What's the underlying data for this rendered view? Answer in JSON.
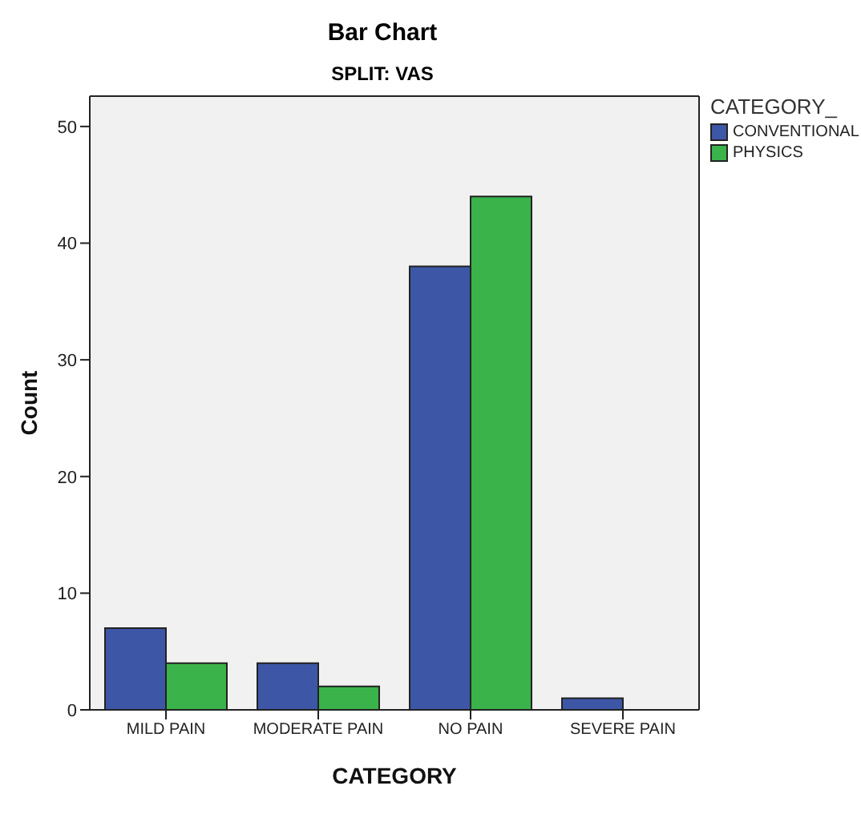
{
  "chart_data": {
    "type": "bar",
    "title": "Bar Chart",
    "subtitle": "SPLIT: VAS",
    "xlabel": "CATEGORY",
    "ylabel": "Count",
    "legend_title": "CATEGORY_",
    "categories": [
      "MILD PAIN",
      "MODERATE PAIN",
      "NO PAIN",
      "SEVERE PAIN"
    ],
    "series": [
      {
        "name": "CONVENTIONAL",
        "color": "#3d56a6",
        "values": [
          7,
          4,
          38,
          1
        ]
      },
      {
        "name": "PHYSICS",
        "color": "#3ab34a",
        "values": [
          4,
          2,
          44,
          0
        ]
      }
    ],
    "ylim": [
      0,
      52.6
    ],
    "yticks": [
      0,
      10,
      20,
      30,
      40,
      50
    ],
    "grid": false,
    "legend": "top right"
  }
}
